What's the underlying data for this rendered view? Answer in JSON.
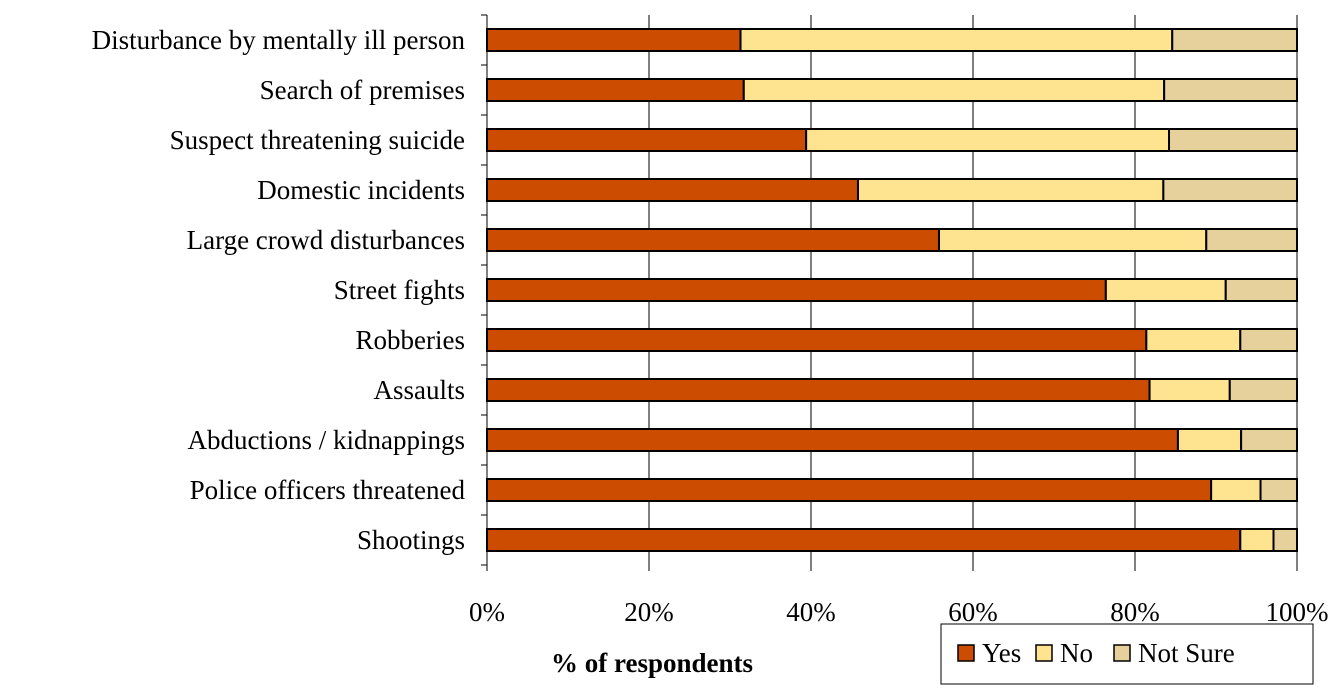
{
  "chart_data": {
    "type": "bar",
    "orientation": "horizontal",
    "stacked": true,
    "percent_stacked": true,
    "categories": [
      "Disturbance by mentally ill person",
      "Search of premises",
      "Suspect threatening suicide",
      "Domestic incidents",
      "Large crowd disturbances",
      "Street fights",
      "Robberies",
      "Assaults",
      "Abductions / kidnappings",
      "Police officers threatened",
      "Shootings"
    ],
    "series": [
      {
        "name": "Yes",
        "color": "#cc4c02",
        "values": [
          31.3,
          31.7,
          39.4,
          45.8,
          55.8,
          76.4,
          81.4,
          81.8,
          85.3,
          89.4,
          93.0
        ]
      },
      {
        "name": "No",
        "color": "#fee391",
        "values": [
          53.3,
          51.9,
          44.8,
          37.7,
          33.0,
          14.8,
          11.6,
          9.9,
          7.8,
          6.1,
          4.1
        ]
      },
      {
        "name": "Not Sure",
        "color": "#e6d09b",
        "values": [
          15.4,
          16.4,
          15.8,
          16.5,
          11.2,
          8.8,
          7.0,
          8.3,
          6.9,
          4.5,
          2.9
        ]
      }
    ],
    "xlabel": "% of respondents",
    "ylabel": "",
    "xlim": [
      0,
      100
    ],
    "x_ticks": [
      "0%",
      "20%",
      "40%",
      "60%",
      "80%",
      "100%"
    ],
    "grid": "vertical",
    "legend": {
      "position": "bottom-right",
      "orientation": "horizontal"
    }
  }
}
